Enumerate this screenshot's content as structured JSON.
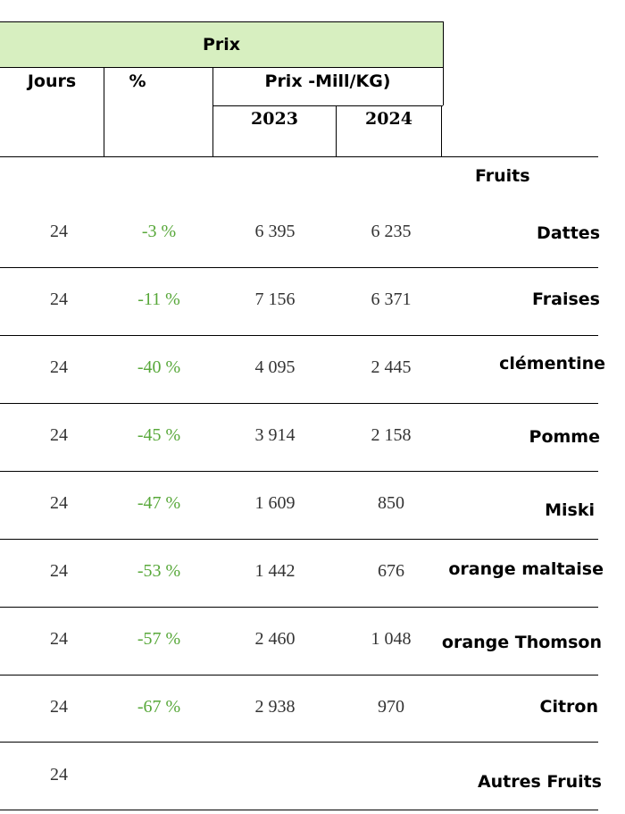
{
  "header": {
    "title": "Prix",
    "col_jours": "Jours",
    "col_pct": "%",
    "col_prix": "Prix -Mill/KG)",
    "year_2023": "2023",
    "year_2024": "2024",
    "fruits_label": "Fruits"
  },
  "rows": [
    {
      "jours": "24",
      "pct": "-3 %",
      "p2023": "6 395",
      "p2024": "6 235",
      "fruit": "Dattes"
    },
    {
      "jours": "24",
      "pct": "-11 %",
      "p2023": "7 156",
      "p2024": "6 371",
      "fruit": "Fraises"
    },
    {
      "jours": "24",
      "pct": "-40 %",
      "p2023": "4 095",
      "p2024": "2 445",
      "fruit": "clémentine"
    },
    {
      "jours": "24",
      "pct": "-45 %",
      "p2023": "3 914",
      "p2024": "2 158",
      "fruit": "Pomme"
    },
    {
      "jours": "24",
      "pct": "-47 %",
      "p2023": "1 609",
      "p2024": "850",
      "fruit": "Miski"
    },
    {
      "jours": "24",
      "pct": "-53 %",
      "p2023": "1 442",
      "p2024": "676",
      "fruit": "orange maltaise"
    },
    {
      "jours": "24",
      "pct": "-57 %",
      "p2023": "2 460",
      "p2024": "1 048",
      "fruit": "orange Thomson"
    },
    {
      "jours": "24",
      "pct": "-67 %",
      "p2023": "2 938",
      "p2024": "970",
      "fruit": "Citron"
    },
    {
      "jours": "24",
      "pct": "",
      "p2023": "",
      "p2024": "",
      "fruit": "Autres Fruits"
    }
  ],
  "colors": {
    "header_band": "#d7efc0",
    "percent_text": "#58a83a",
    "value_text": "#333333"
  }
}
